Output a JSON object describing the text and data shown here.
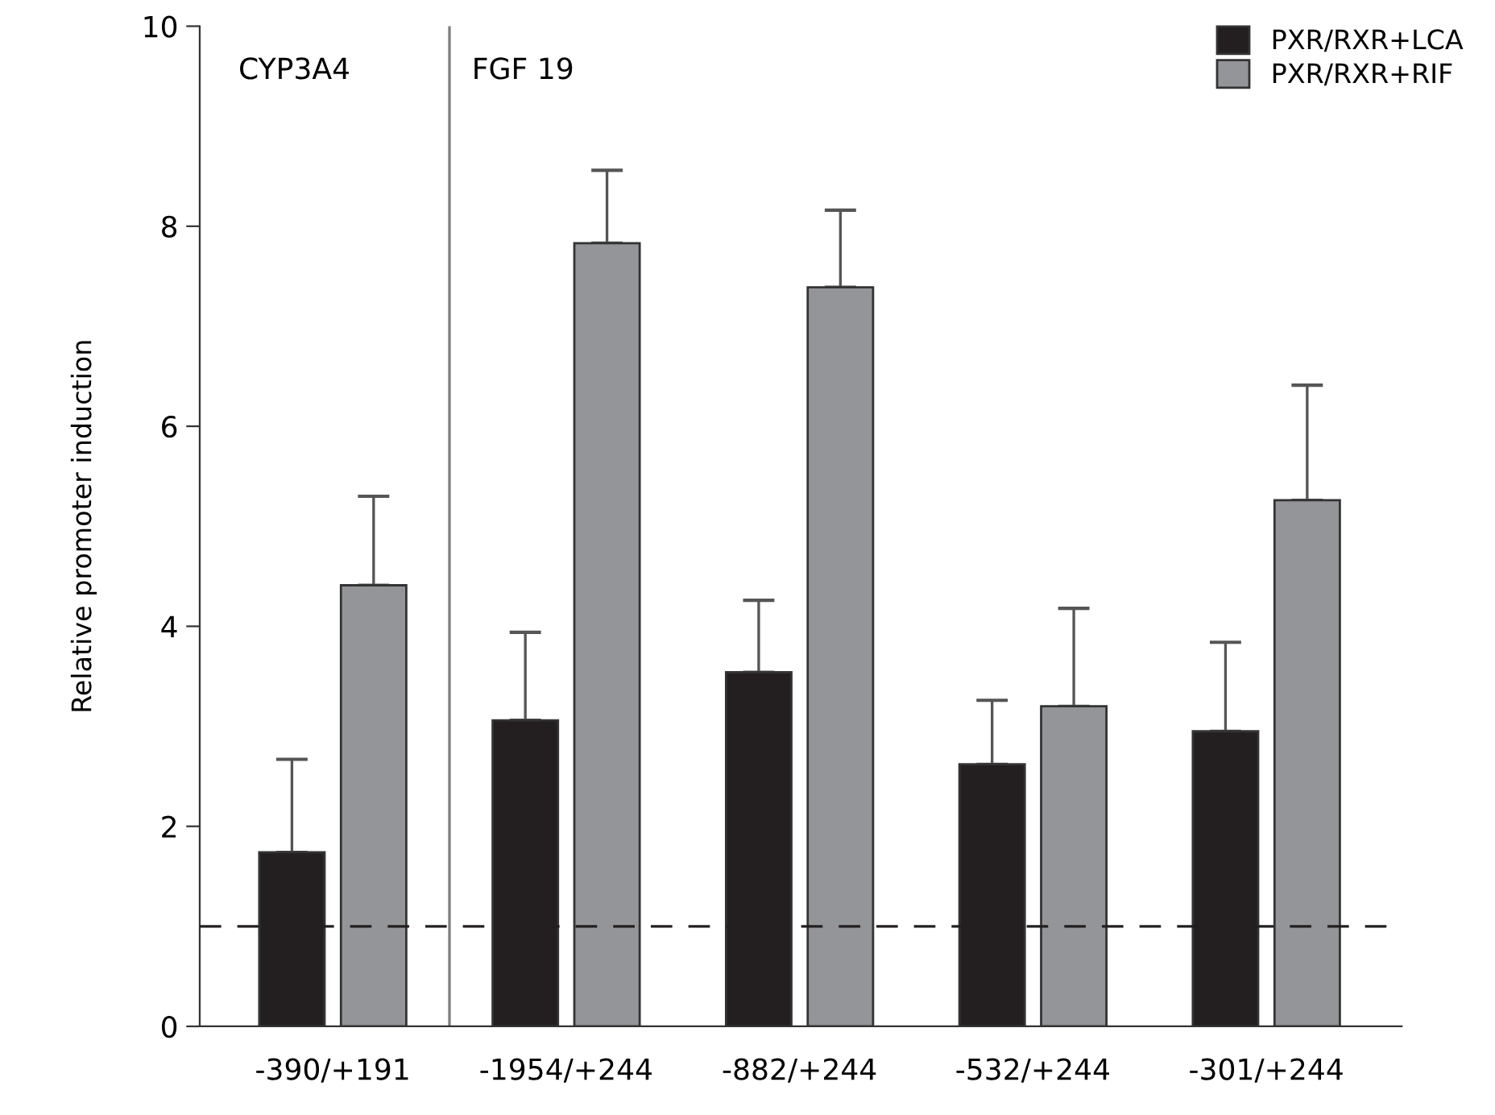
{
  "chart_data": {
    "type": "bar",
    "ylabel": "Relative promoter induction",
    "categories": [
      "-390/+191",
      "-1954/+244",
      "-882/+244",
      "-532/+244",
      "-301/+244"
    ],
    "series": [
      {
        "name": "PXR/RXR+LCA",
        "color": "#231f20",
        "values": [
          1.74,
          3.06,
          3.54,
          2.62,
          2.95
        ],
        "errors": [
          [
            1.74,
            2.67
          ],
          [
            3.06,
            3.94
          ],
          [
            3.54,
            4.26
          ],
          [
            2.62,
            3.26
          ],
          [
            2.95,
            3.84
          ]
        ]
      },
      {
        "name": "PXR/RXR+RIF",
        "color": "#939598",
        "values": [
          4.41,
          7.83,
          7.39,
          3.2,
          5.26
        ],
        "errors": [
          [
            4.41,
            5.3
          ],
          [
            7.83,
            8.56
          ],
          [
            7.39,
            8.16
          ],
          [
            3.2,
            4.18
          ],
          [
            5.26,
            6.41
          ]
        ]
      }
    ],
    "ylim": [
      0,
      10
    ],
    "yticks": [
      0,
      2,
      4,
      6,
      8,
      10
    ],
    "ref_lines": [
      {
        "axis": "y",
        "value": 1,
        "line_style": "dashed",
        "color": "#231f20"
      }
    ],
    "annotations": [
      "CYP3A4",
      "FGF 19"
    ],
    "grid": false,
    "legend": "top right"
  }
}
